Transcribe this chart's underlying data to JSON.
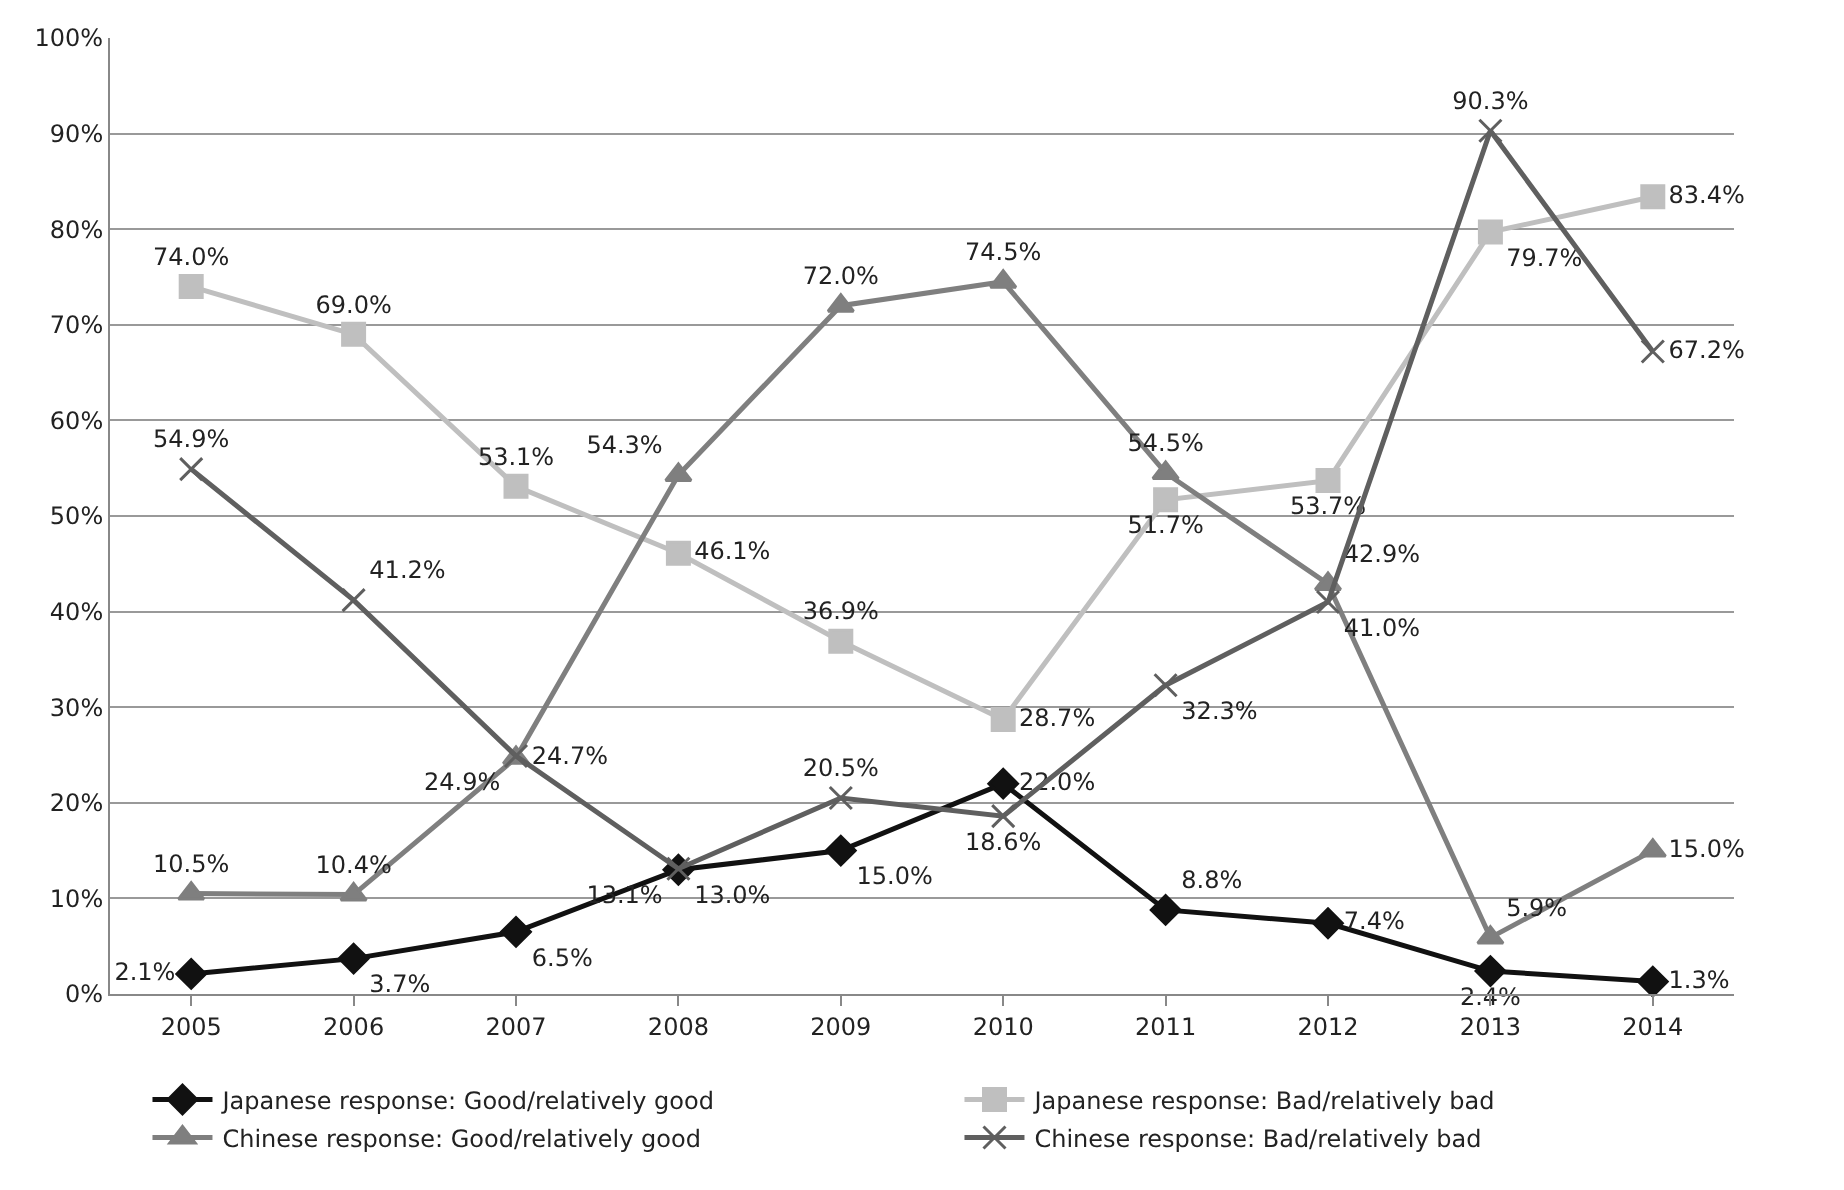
{
  "chart_data": {
    "type": "line",
    "categories": [
      "2005",
      "2006",
      "2007",
      "2008",
      "2009",
      "2010",
      "2011",
      "2012",
      "2013",
      "2014"
    ],
    "ylim": [
      0,
      100
    ],
    "yticks": [
      {
        "value": 0,
        "label": "0%"
      },
      {
        "value": 10,
        "label": "10%"
      },
      {
        "value": 20,
        "label": "20%"
      },
      {
        "value": 30,
        "label": "30%"
      },
      {
        "value": 40,
        "label": "40%"
      },
      {
        "value": 50,
        "label": "50%"
      },
      {
        "value": 60,
        "label": "60%"
      },
      {
        "value": 70,
        "label": "70%"
      },
      {
        "value": 80,
        "label": "80%"
      },
      {
        "value": 90,
        "label": "90%"
      },
      {
        "value": 100,
        "label": "100%"
      }
    ],
    "grid": "y",
    "legend": "bottom",
    "line_style": "solid",
    "series": [
      {
        "name": "Japanese response: Good/relatively good",
        "color": "#111111",
        "marker": "diamond",
        "values": [
          2.1,
          3.7,
          6.5,
          13.0,
          15.0,
          22.0,
          8.8,
          7.4,
          2.4,
          1.3
        ],
        "value_labels": [
          "2.1%",
          "3.7%",
          "6.5%",
          "13.0%",
          "15.0%",
          "22.0%",
          "8.8%",
          "7.4%",
          "2.4%",
          "1.3%"
        ]
      },
      {
        "name": "Japanese response: Bad/relatively bad",
        "color": "#bfbfbf",
        "marker": "square",
        "values": [
          74.0,
          69.0,
          53.1,
          46.1,
          36.9,
          28.7,
          51.7,
          53.7,
          79.7,
          83.4
        ],
        "value_labels": [
          "74.0%",
          "69.0%",
          "53.1%",
          "46.1%",
          "36.9%",
          "28.7%",
          "51.7%",
          "53.7%",
          "79.7%",
          "83.4%"
        ]
      },
      {
        "name": "Chinese response: Good/relatively good",
        "color": "#7f7f7f",
        "marker": "triangle",
        "values": [
          10.5,
          10.4,
          24.7,
          54.3,
          72.0,
          74.5,
          54.5,
          42.9,
          5.9,
          15.0
        ],
        "value_labels": [
          "10.5%",
          "10.4%",
          "24.7%",
          "54.3%",
          "72.0%",
          "74.5%",
          "54.5%",
          "42.9%",
          "5.9%",
          "15.0%"
        ]
      },
      {
        "name": "Chinese response: Bad/relatively bad",
        "color": "#5f5f5f",
        "marker": "cross",
        "values": [
          54.9,
          41.2,
          24.9,
          13.1,
          20.5,
          18.6,
          32.3,
          41.0,
          90.3,
          67.2
        ],
        "value_labels": [
          "54.9%",
          "41.2%",
          "24.9%",
          "13.1%",
          "20.5%",
          "18.6%",
          "32.3%",
          "41.0%",
          "90.3%",
          "67.2%"
        ]
      }
    ]
  }
}
